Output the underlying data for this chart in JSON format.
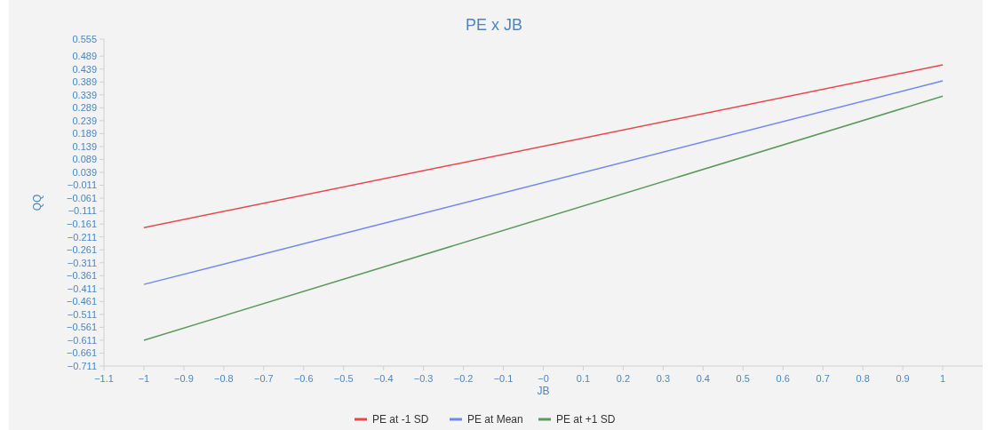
{
  "chart_data": {
    "type": "line",
    "title": "PE x JB",
    "xlabel": "JB",
    "ylabel": "QQ",
    "x": [
      -1,
      1
    ],
    "series": [
      {
        "name": "PE at -1 SD",
        "color": "#e8474a",
        "values": [
          -0.175,
          0.455
        ]
      },
      {
        "name": "PE at Mean",
        "color": "#6f87ee",
        "values": [
          -0.395,
          0.393
        ]
      },
      {
        "name": "PE at +1 SD",
        "color": "#5c9a5c",
        "values": [
          -0.611,
          0.334
        ]
      }
    ],
    "xlim": [
      -1.1,
      1.1
    ],
    "xticks": [
      -1.1,
      -1,
      -0.9,
      -0.8,
      -0.7,
      -0.6,
      -0.5,
      -0.4,
      -0.3,
      -0.2,
      -0.1,
      {
        "value": 0,
        "label": "−0"
      },
      0.1,
      0.2,
      0.3,
      0.4,
      0.5,
      0.6,
      0.7,
      0.8,
      0.9,
      1
    ],
    "ylim": [
      -0.711,
      0.555
    ],
    "yticks": [
      -0.711,
      -0.661,
      -0.611,
      -0.561,
      -0.511,
      -0.461,
      -0.411,
      -0.361,
      -0.311,
      -0.261,
      -0.211,
      -0.161,
      -0.111,
      -0.061,
      -0.011,
      0.039,
      0.089,
      0.139,
      0.189,
      0.239,
      0.289,
      0.339,
      0.389,
      0.439,
      0.489,
      0.555
    ],
    "legend": "bottom",
    "grid": false,
    "marker": "none",
    "line_style": "solid"
  }
}
